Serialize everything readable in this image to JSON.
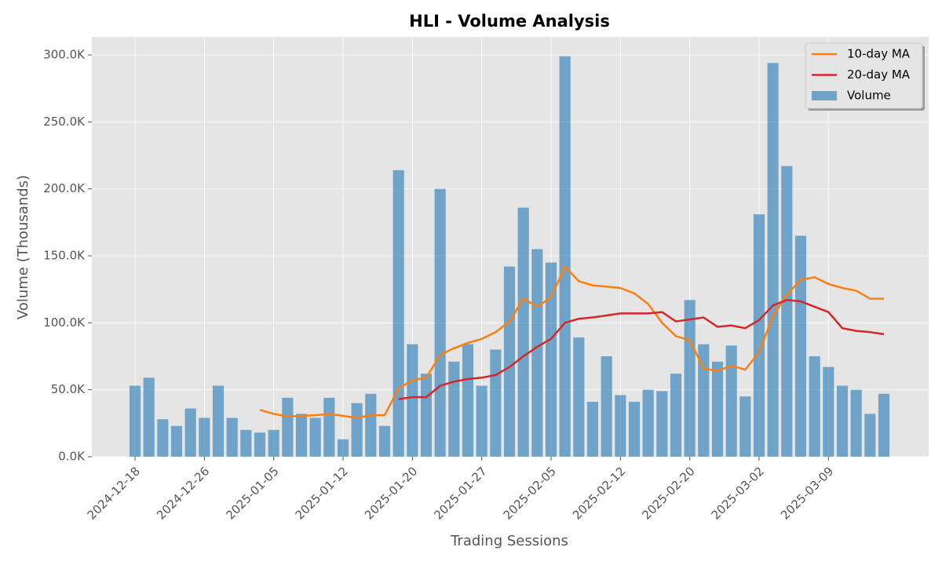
{
  "chart_data": {
    "type": "bar",
    "title": "HLI - Volume Analysis",
    "x_label": "Trading Sessions",
    "y_label": "Volume (Thousands)",
    "categories": [
      "2024-12-18",
      null,
      null,
      null,
      null,
      "2024-12-26",
      null,
      null,
      null,
      null,
      "2025-01-05",
      null,
      null,
      null,
      null,
      "2025-01-12",
      null,
      null,
      null,
      null,
      "2025-01-20",
      null,
      null,
      null,
      null,
      "2025-01-27",
      null,
      null,
      null,
      null,
      "2025-02-05",
      null,
      null,
      null,
      null,
      "2025-02-12",
      null,
      null,
      null,
      null,
      "2025-02-20",
      null,
      null,
      null,
      null,
      "2025-03-02",
      null,
      null,
      null,
      null,
      "2025-03-09",
      null,
      null,
      null,
      null
    ],
    "series": [
      {
        "name": "10-day MA",
        "type": "line",
        "color": "#ff7f0e",
        "values": [
          null,
          null,
          null,
          null,
          null,
          null,
          null,
          null,
          null,
          35,
          32,
          30,
          30.5,
          31,
          32,
          30.5,
          29,
          31,
          31,
          51,
          57,
          59,
          76,
          81,
          85,
          88,
          93,
          101,
          118,
          112,
          119,
          142,
          131,
          128,
          127,
          126,
          122,
          114,
          100,
          90,
          87,
          66,
          64,
          68,
          65,
          78,
          105,
          121,
          132,
          134,
          129,
          126,
          124,
          118,
          118
        ]
      },
      {
        "name": "20-day MA",
        "type": "line",
        "color": "#d62728",
        "values": [
          null,
          null,
          null,
          null,
          null,
          null,
          null,
          null,
          null,
          null,
          null,
          null,
          null,
          null,
          null,
          null,
          null,
          null,
          null,
          43,
          44.5,
          44.5,
          53,
          56,
          58,
          59,
          61,
          67,
          75,
          82,
          88,
          100,
          103,
          104,
          105.5,
          107,
          107,
          107,
          108,
          101,
          102.5,
          104,
          97,
          98,
          96,
          102,
          113,
          117,
          116,
          112,
          108,
          96,
          94,
          93,
          91.5
        ]
      },
      {
        "name": "Volume",
        "type": "bar",
        "color": "#1f77b4",
        "values": [
          53,
          59,
          28,
          23,
          36,
          29,
          53,
          29,
          20,
          18,
          20,
          44,
          32,
          29,
          44,
          13,
          40,
          47,
          23,
          214,
          84,
          62,
          200,
          71,
          84,
          53,
          80,
          142,
          186,
          155,
          145,
          299,
          89,
          41,
          75,
          46,
          41,
          50,
          49,
          62,
          117,
          84,
          71,
          83,
          45,
          181,
          294,
          217,
          165,
          75,
          67,
          53,
          50,
          32,
          47
        ]
      }
    ],
    "ylim": [
      0,
      313.5
    ],
    "yticks": [
      {
        "value": 0,
        "label": "0.0K"
      },
      {
        "value": 50,
        "label": "50.0K"
      },
      {
        "value": 100,
        "label": "100.0K"
      },
      {
        "value": 150,
        "label": "150.0K"
      },
      {
        "value": 200,
        "label": "200.0K"
      },
      {
        "value": 250,
        "label": "250.0K"
      },
      {
        "value": 300,
        "label": "300.0K"
      }
    ],
    "grid": true,
    "legend": "upper right"
  }
}
